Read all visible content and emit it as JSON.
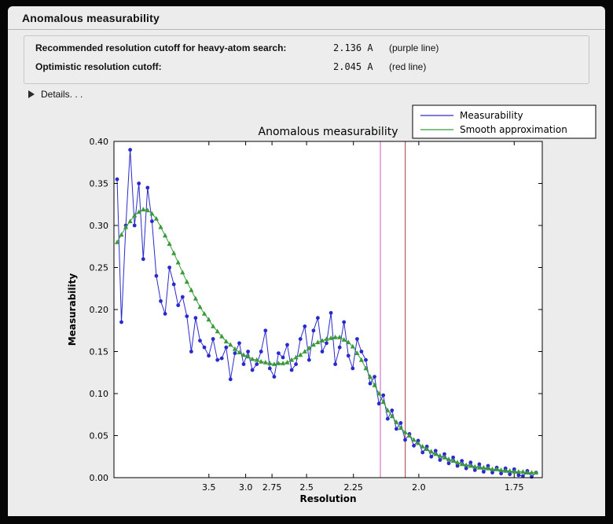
{
  "window": {
    "title": "Anomalous measurability"
  },
  "summary": {
    "rows": [
      {
        "label": "Recommended resolution cutoff for heavy-atom search:",
        "value": "2.136 A",
        "note": "(purple line)"
      },
      {
        "label": "Optimistic resolution cutoff:",
        "value": "2.045 A",
        "note": "(red line)"
      }
    ]
  },
  "details": {
    "label": "Details. . .",
    "icon": "disclosure-triangle-icon"
  },
  "chart_data": {
    "type": "line",
    "title": "Anomalous measurability",
    "xlabel": "Resolution",
    "ylabel": "Measurability",
    "x_axis_transform": "1/d^2",
    "x_range_s": [
      0.0055,
      0.349
    ],
    "ylim": [
      0.0,
      0.4
    ],
    "y_ticks": [
      0.0,
      0.05,
      0.1,
      0.15,
      0.2,
      0.25,
      0.3,
      0.35,
      0.4
    ],
    "x_ticks": [
      {
        "d": 3.5,
        "label": "3.5"
      },
      {
        "d": 3.0,
        "label": "3.0"
      },
      {
        "d": 2.75,
        "label": "2.75"
      },
      {
        "d": 2.5,
        "label": "2.5"
      },
      {
        "d": 2.25,
        "label": "2.25"
      },
      {
        "d": 2.0,
        "label": "2.0"
      },
      {
        "d": 1.75,
        "label": "1.75"
      }
    ],
    "axes_bg": "#ffffff",
    "figure_bg": "#ececec",
    "legend_position": "upper right",
    "vlines": [
      {
        "d": 2.136,
        "color": "#c55bc5",
        "name": "purple-cutoff-line",
        "meaning": "Recommended resolution cutoff for heavy-atom search"
      },
      {
        "d": 2.045,
        "color": "#a33a3a",
        "name": "red-cutoff-line",
        "meaning": "Optimistic resolution cutoff"
      }
    ],
    "s_values": [
      0.008,
      0.0115,
      0.015,
      0.0185,
      0.022,
      0.0255,
      0.029,
      0.0325,
      0.036,
      0.0395,
      0.043,
      0.0465,
      0.05,
      0.0535,
      0.057,
      0.0605,
      0.064,
      0.0675,
      0.071,
      0.0745,
      0.078,
      0.0815,
      0.085,
      0.0885,
      0.092,
      0.0955,
      0.099,
      0.1025,
      0.106,
      0.1095,
      0.113,
      0.1165,
      0.12,
      0.1235,
      0.127,
      0.1305,
      0.134,
      0.1375,
      0.141,
      0.1445,
      0.148,
      0.1515,
      0.155,
      0.1585,
      0.162,
      0.1655,
      0.169,
      0.1725,
      0.176,
      0.1795,
      0.183,
      0.1865,
      0.19,
      0.1935,
      0.197,
      0.2005,
      0.204,
      0.2075,
      0.211,
      0.2145,
      0.218,
      0.2215,
      0.225,
      0.2285,
      0.232,
      0.2355,
      0.239,
      0.2425,
      0.246,
      0.2495,
      0.253,
      0.2565,
      0.26,
      0.2635,
      0.267,
      0.2705,
      0.274,
      0.2775,
      0.281,
      0.2845,
      0.288,
      0.2915,
      0.295,
      0.2985,
      0.302,
      0.3055,
      0.309,
      0.3125,
      0.316,
      0.3195,
      0.323,
      0.3265,
      0.33,
      0.3335,
      0.337,
      0.3405,
      0.344
    ],
    "series": [
      {
        "name": "Measurability",
        "color": "#2a2acc",
        "marker": "circle",
        "values": [
          0.355,
          0.185,
          0.3,
          0.39,
          0.3,
          0.35,
          0.26,
          0.345,
          0.305,
          0.24,
          0.21,
          0.195,
          0.25,
          0.23,
          0.205,
          0.215,
          0.192,
          0.15,
          0.19,
          0.163,
          0.155,
          0.145,
          0.165,
          0.14,
          0.142,
          0.155,
          0.117,
          0.148,
          0.16,
          0.135,
          0.15,
          0.128,
          0.135,
          0.15,
          0.175,
          0.13,
          0.12,
          0.148,
          0.143,
          0.158,
          0.128,
          0.135,
          0.165,
          0.18,
          0.14,
          0.175,
          0.19,
          0.15,
          0.16,
          0.196,
          0.135,
          0.155,
          0.185,
          0.145,
          0.13,
          0.165,
          0.15,
          0.14,
          0.112,
          0.12,
          0.088,
          0.098,
          0.07,
          0.08,
          0.058,
          0.065,
          0.045,
          0.052,
          0.038,
          0.044,
          0.03,
          0.037,
          0.025,
          0.032,
          0.021,
          0.028,
          0.017,
          0.024,
          0.014,
          0.02,
          0.011,
          0.018,
          0.009,
          0.016,
          0.007,
          0.014,
          0.006,
          0.012,
          0.005,
          0.011,
          0.004,
          0.01,
          0.003,
          0.002,
          0.008,
          0.001,
          0.006
        ]
      },
      {
        "name": "Smooth approximation",
        "color": "#3a9a3a",
        "marker": "triangle",
        "values": [
          0.28,
          0.289,
          0.298,
          0.305,
          0.312,
          0.316,
          0.319,
          0.318,
          0.314,
          0.308,
          0.298,
          0.288,
          0.278,
          0.267,
          0.256,
          0.244,
          0.233,
          0.223,
          0.213,
          0.203,
          0.195,
          0.188,
          0.18,
          0.174,
          0.168,
          0.162,
          0.158,
          0.153,
          0.149,
          0.146,
          0.144,
          0.141,
          0.14,
          0.138,
          0.137,
          0.136,
          0.135,
          0.136,
          0.136,
          0.137,
          0.14,
          0.143,
          0.146,
          0.15,
          0.154,
          0.158,
          0.161,
          0.163,
          0.165,
          0.166,
          0.167,
          0.167,
          0.164,
          0.161,
          0.156,
          0.148,
          0.14,
          0.13,
          0.12,
          0.11,
          0.1,
          0.09,
          0.08,
          0.073,
          0.066,
          0.059,
          0.054,
          0.05,
          0.045,
          0.041,
          0.037,
          0.034,
          0.031,
          0.028,
          0.026,
          0.024,
          0.022,
          0.02,
          0.018,
          0.016,
          0.015,
          0.014,
          0.013,
          0.012,
          0.012,
          0.011,
          0.01,
          0.01,
          0.009,
          0.008,
          0.008,
          0.007,
          0.007,
          0.007,
          0.006,
          0.006,
          0.006
        ]
      }
    ]
  }
}
